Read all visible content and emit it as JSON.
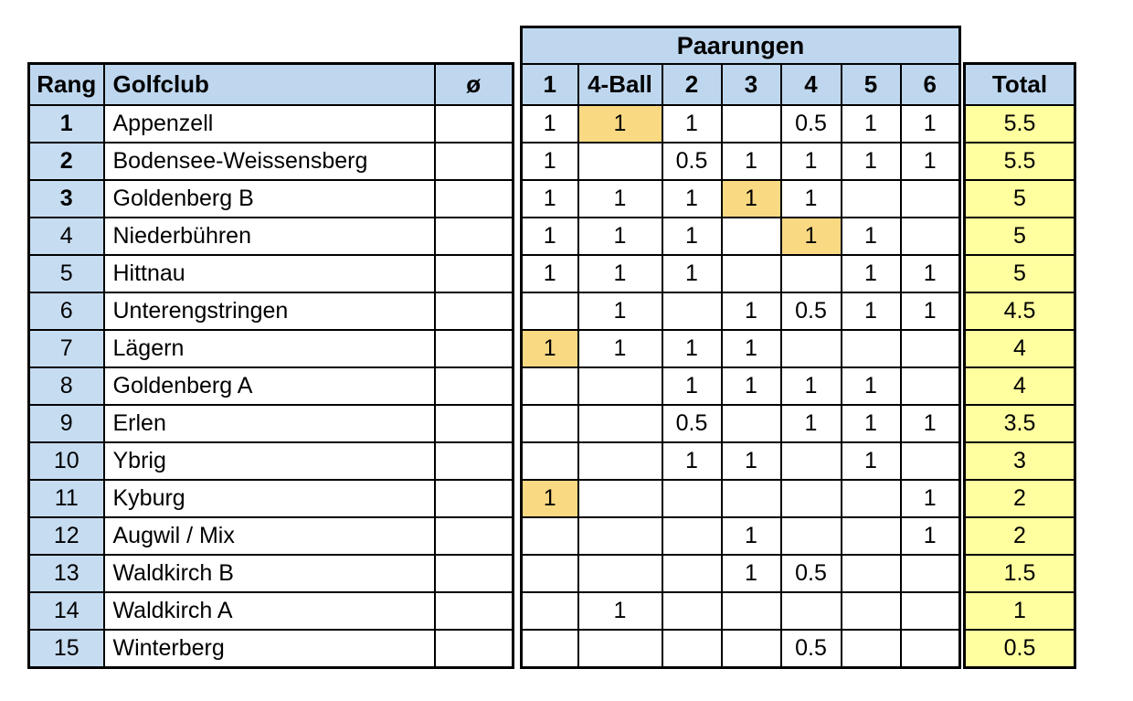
{
  "banner": {
    "label": "Paarungen"
  },
  "header": {
    "rang": "Rang",
    "golfclub": "Golfclub",
    "average": "ø",
    "pairings": [
      "1",
      "4-Ball",
      "2",
      "3",
      "4",
      "5",
      "6"
    ],
    "total": "Total"
  },
  "colors": {
    "header_blue": "#BFD7EE",
    "rank_blue": "#C6DCF1",
    "highlight_gold": "#FAD983",
    "total_yellow": "#FFFFA0",
    "border": "#000000"
  },
  "rows": [
    {
      "rank": "1",
      "club": "Appenzell",
      "average": "",
      "scores": [
        "1",
        "1",
        "1",
        "",
        "0.5",
        "1",
        "1"
      ],
      "highlighted_cols": [
        1
      ],
      "total": "5.5",
      "rank_bold": true
    },
    {
      "rank": "2",
      "club": "Bodensee-Weissensberg",
      "average": "",
      "scores": [
        "1",
        "",
        "0.5",
        "1",
        "1",
        "1",
        "1"
      ],
      "highlighted_cols": [],
      "total": "5.5",
      "rank_bold": true
    },
    {
      "rank": "3",
      "club": "Goldenberg B",
      "average": "",
      "scores": [
        "1",
        "1",
        "1",
        "1",
        "1",
        "",
        ""
      ],
      "highlighted_cols": [
        3
      ],
      "total": "5",
      "rank_bold": true
    },
    {
      "rank": "4",
      "club": "Niederbühren",
      "average": "",
      "scores": [
        "1",
        "1",
        "1",
        "",
        "1",
        "1",
        ""
      ],
      "highlighted_cols": [
        4
      ],
      "total": "5",
      "rank_bold": false
    },
    {
      "rank": "5",
      "club": "Hittnau",
      "average": "",
      "scores": [
        "1",
        "1",
        "1",
        "",
        "",
        "1",
        "1"
      ],
      "highlighted_cols": [],
      "total": "5",
      "rank_bold": false
    },
    {
      "rank": "6",
      "club": "Unterengstringen",
      "average": "",
      "scores": [
        "",
        "1",
        "",
        "1",
        "0.5",
        "1",
        "1"
      ],
      "highlighted_cols": [],
      "total": "4.5",
      "rank_bold": false
    },
    {
      "rank": "7",
      "club": "Lägern",
      "average": "",
      "scores": [
        "1",
        "1",
        "1",
        "1",
        "",
        "",
        ""
      ],
      "highlighted_cols": [
        0
      ],
      "total": "4",
      "rank_bold": false
    },
    {
      "rank": "8",
      "club": "Goldenberg A",
      "average": "",
      "scores": [
        "",
        "",
        "1",
        "1",
        "1",
        "1",
        ""
      ],
      "highlighted_cols": [],
      "total": "4",
      "rank_bold": false
    },
    {
      "rank": "9",
      "club": "Erlen",
      "average": "",
      "scores": [
        "",
        "",
        "0.5",
        "",
        "1",
        "1",
        "1"
      ],
      "highlighted_cols": [],
      "total": "3.5",
      "rank_bold": false
    },
    {
      "rank": "10",
      "club": "Ybrig",
      "average": "",
      "scores": [
        "",
        "",
        "1",
        "1",
        "",
        "1",
        ""
      ],
      "highlighted_cols": [],
      "total": "3",
      "rank_bold": false
    },
    {
      "rank": "11",
      "club": "Kyburg",
      "average": "",
      "scores": [
        "1",
        "",
        "",
        "",
        "",
        "",
        "1"
      ],
      "highlighted_cols": [
        0
      ],
      "total": "2",
      "rank_bold": false
    },
    {
      "rank": "12",
      "club": "Augwil / Mix",
      "average": "",
      "scores": [
        "",
        "",
        "",
        "1",
        "",
        "",
        "1"
      ],
      "highlighted_cols": [],
      "total": "2",
      "rank_bold": false
    },
    {
      "rank": "13",
      "club": "Waldkirch B",
      "average": "",
      "scores": [
        "",
        "",
        "",
        "1",
        "0.5",
        "",
        ""
      ],
      "highlighted_cols": [],
      "total": "1.5",
      "rank_bold": false
    },
    {
      "rank": "14",
      "club": "Waldkirch A",
      "average": "",
      "scores": [
        "",
        "1",
        "",
        "",
        "",
        "",
        ""
      ],
      "highlighted_cols": [],
      "total": "1",
      "rank_bold": false
    },
    {
      "rank": "15",
      "club": "Winterberg",
      "average": "",
      "scores": [
        "",
        "",
        "",
        "",
        "0.5",
        "",
        ""
      ],
      "highlighted_cols": [],
      "total": "0.5",
      "rank_bold": false
    }
  ]
}
